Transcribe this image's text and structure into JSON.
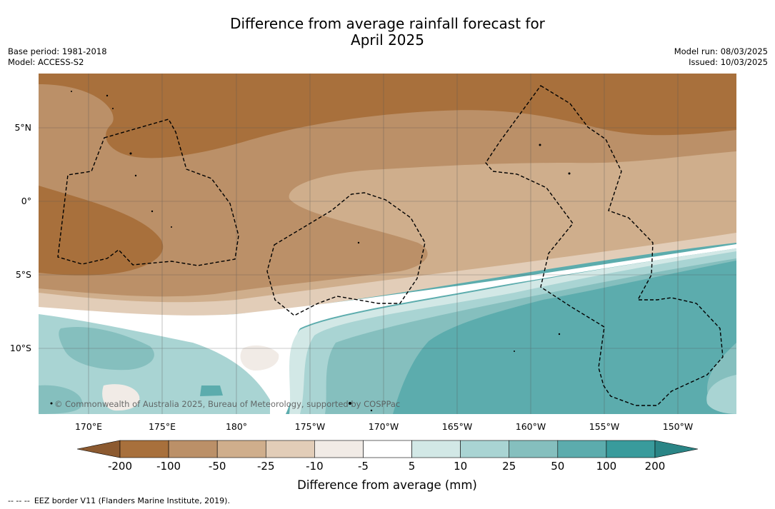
{
  "title_line1": "Difference from average rainfall forecast for",
  "title_line2": "April 2025",
  "meta_left": [
    "Base period: 1981-2018",
    "Model: ACCESS-S2"
  ],
  "meta_right": [
    "Model run: 08/03/2025",
    "Issued: 10/03/2025"
  ],
  "copyright": "© Commonwealth of Australia 2025, Bureau of Meteorology, supported by COSPPac",
  "lat_labels": [
    "5°N",
    "0°",
    "5°S",
    "10°S"
  ],
  "lon_labels": [
    "170°E",
    "175°E",
    "180°",
    "175°W",
    "170°W",
    "165°W",
    "160°W",
    "155°W",
    "150°W"
  ],
  "legend": {
    "title": "Difference from average (mm)",
    "ticks": [
      "-200",
      "-100",
      "-50",
      "-25",
      "-10",
      "-5",
      "5",
      "10",
      "25",
      "50",
      "100",
      "200"
    ],
    "colors": [
      "#8c5a30",
      "#a8703c",
      "#bb9068",
      "#cfae8c",
      "#e2cdb8",
      "#f1ebe6",
      "#ffffff",
      "#d2e8e6",
      "#a9d4d3",
      "#85bfbe",
      "#5cacad",
      "#399b9c",
      "#2a8586"
    ]
  },
  "footnote_dash": "-- -- --",
  "footnote": "EEZ border V11 (Flanders Marine Institute, 2019)."
}
